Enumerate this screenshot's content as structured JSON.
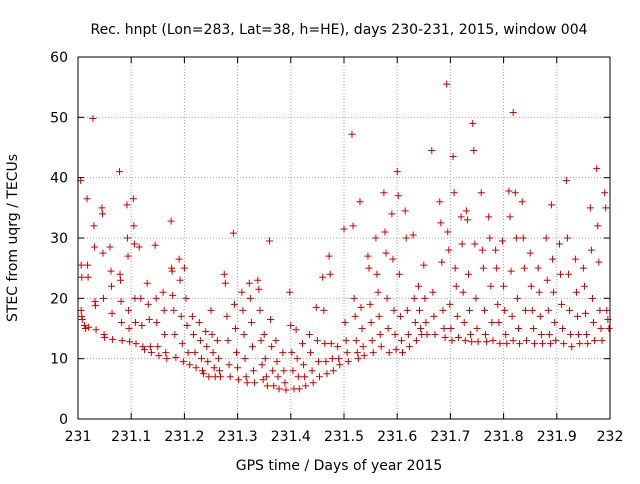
{
  "chart_data": {
    "type": "scatter",
    "title": "Rec. hnpt (Lon=283, Lat=38, h=HE), days 230-231, 2015, window 004",
    "xlabel": "GPS time / Days of year 2015",
    "ylabel": "STEC from uqrg / TECUs",
    "xlim": [
      231,
      232
    ],
    "ylim": [
      0,
      60
    ],
    "xticks": [
      231,
      231.1,
      231.2,
      231.3,
      231.4,
      231.5,
      231.6,
      231.7,
      231.8,
      231.9,
      232
    ],
    "xtick_labels": [
      "231",
      "231.1",
      "231.2",
      "231.3",
      "231.4",
      "231.5",
      "231.6",
      "231.7",
      "231.8",
      "231.9",
      "232"
    ],
    "yticks": [
      0,
      10,
      20,
      30,
      40,
      50,
      60
    ],
    "ytick_labels": [
      "0",
      "10",
      "20",
      "30",
      "40",
      "50",
      "60"
    ],
    "grid": true,
    "marker": "+",
    "color": "#cc0000",
    "points": [
      [
        231.005,
        39.5
      ],
      [
        231.006,
        25.5
      ],
      [
        231.007,
        23.5
      ],
      [
        231.006,
        18
      ],
      [
        231.007,
        17
      ],
      [
        231.008,
        16.5
      ],
      [
        231.012,
        15.5
      ],
      [
        231.014,
        15
      ],
      [
        231.017,
        36.5
      ],
      [
        231.018,
        25.5
      ],
      [
        231.019,
        23.5
      ],
      [
        231.02,
        15.2
      ],
      [
        231.028,
        49.8
      ],
      [
        231.03,
        32
      ],
      [
        231.031,
        28.5
      ],
      [
        231.032,
        19.5
      ],
      [
        231.033,
        18.8
      ],
      [
        231.034,
        14.8
      ],
      [
        231.045,
        35
      ],
      [
        231.046,
        34
      ],
      [
        231.047,
        27.5
      ],
      [
        231.048,
        20
      ],
      [
        231.049,
        14
      ],
      [
        231.05,
        13.5
      ],
      [
        231.06,
        28.5
      ],
      [
        231.062,
        24.5
      ],
      [
        231.063,
        22
      ],
      [
        231.064,
        17.5
      ],
      [
        231.065,
        13.2
      ],
      [
        231.078,
        41
      ],
      [
        231.079,
        24
      ],
      [
        231.08,
        23
      ],
      [
        231.081,
        19.5
      ],
      [
        231.082,
        16
      ],
      [
        231.083,
        13
      ],
      [
        231.092,
        35.5
      ],
      [
        231.093,
        30
      ],
      [
        231.094,
        27
      ],
      [
        231.095,
        18
      ],
      [
        231.096,
        15
      ],
      [
        231.097,
        12.8
      ],
      [
        231.104,
        36.5
      ],
      [
        231.105,
        32
      ],
      [
        231.106,
        29
      ],
      [
        231.107,
        20
      ],
      [
        231.108,
        16
      ],
      [
        231.109,
        12.5
      ],
      [
        231.115,
        28.5
      ],
      [
        231.118,
        20
      ],
      [
        231.12,
        15.5
      ],
      [
        231.122,
        12
      ],
      [
        231.125,
        11.5
      ],
      [
        231.13,
        22.5
      ],
      [
        231.132,
        19
      ],
      [
        231.134,
        16.5
      ],
      [
        231.136,
        12
      ],
      [
        231.138,
        11
      ],
      [
        231.145,
        28.8
      ],
      [
        231.147,
        20
      ],
      [
        231.148,
        16
      ],
      [
        231.15,
        12
      ],
      [
        231.152,
        10.5
      ],
      [
        231.16,
        21
      ],
      [
        231.162,
        18
      ],
      [
        231.163,
        14
      ],
      [
        231.165,
        11
      ],
      [
        231.167,
        10
      ],
      [
        231.175,
        32.8
      ],
      [
        231.176,
        25
      ],
      [
        231.177,
        24.5
      ],
      [
        231.178,
        20.5
      ],
      [
        231.18,
        18
      ],
      [
        231.182,
        14
      ],
      [
        231.184,
        10.2
      ],
      [
        231.19,
        26.5
      ],
      [
        231.192,
        23
      ],
      [
        231.194,
        17
      ],
      [
        231.196,
        12.5
      ],
      [
        231.198,
        9.5
      ],
      [
        231.2,
        25
      ],
      [
        231.203,
        20
      ],
      [
        231.205,
        15.5
      ],
      [
        231.207,
        11
      ],
      [
        231.21,
        9
      ],
      [
        231.215,
        17
      ],
      [
        231.217,
        14
      ],
      [
        231.22,
        11
      ],
      [
        231.222,
        8.5
      ],
      [
        231.228,
        16
      ],
      [
        231.23,
        13
      ],
      [
        231.232,
        10
      ],
      [
        231.234,
        8
      ],
      [
        231.236,
        7.5
      ],
      [
        231.24,
        14.5
      ],
      [
        231.242,
        12
      ],
      [
        231.244,
        9.5
      ],
      [
        231.246,
        7
      ],
      [
        231.25,
        18
      ],
      [
        231.252,
        14
      ],
      [
        231.254,
        11
      ],
      [
        231.256,
        8.5
      ],
      [
        231.258,
        7
      ],
      [
        231.262,
        13
      ],
      [
        231.264,
        10
      ],
      [
        231.266,
        8
      ],
      [
        231.268,
        7
      ],
      [
        231.275,
        24
      ],
      [
        231.277,
        22.5
      ],
      [
        231.28,
        17
      ],
      [
        231.282,
        13
      ],
      [
        231.284,
        9
      ],
      [
        231.286,
        7
      ],
      [
        231.292,
        30.8
      ],
      [
        231.294,
        19
      ],
      [
        231.296,
        15
      ],
      [
        231.298,
        11
      ],
      [
        231.3,
        8.5
      ],
      [
        231.302,
        6.5
      ],
      [
        231.308,
        21
      ],
      [
        231.31,
        18
      ],
      [
        231.312,
        14
      ],
      [
        231.314,
        10
      ],
      [
        231.316,
        7
      ],
      [
        231.318,
        6
      ],
      [
        231.322,
        22.5
      ],
      [
        231.324,
        20
      ],
      [
        231.326,
        16
      ],
      [
        231.328,
        12
      ],
      [
        231.33,
        8
      ],
      [
        231.332,
        6
      ],
      [
        231.338,
        23
      ],
      [
        231.34,
        21.5
      ],
      [
        231.342,
        18
      ],
      [
        231.344,
        13
      ],
      [
        231.346,
        9
      ],
      [
        231.348,
        6.5
      ],
      [
        231.35,
        14
      ],
      [
        231.352,
        10
      ],
      [
        231.354,
        7
      ],
      [
        231.356,
        5.5
      ],
      [
        231.36,
        29.5
      ],
      [
        231.362,
        16.5
      ],
      [
        231.364,
        12
      ],
      [
        231.366,
        8
      ],
      [
        231.368,
        5.5
      ],
      [
        231.372,
        13
      ],
      [
        231.374,
        9.5
      ],
      [
        231.376,
        7
      ],
      [
        231.378,
        5
      ],
      [
        231.385,
        11
      ],
      [
        231.387,
        8
      ],
      [
        231.389,
        6
      ],
      [
        231.391,
        4.8
      ],
      [
        231.398,
        21
      ],
      [
        231.4,
        15.5
      ],
      [
        231.402,
        11
      ],
      [
        231.404,
        8
      ],
      [
        231.406,
        5
      ],
      [
        231.41,
        14.8
      ],
      [
        231.412,
        10
      ],
      [
        231.414,
        7
      ],
      [
        231.416,
        5
      ],
      [
        231.422,
        12.5
      ],
      [
        231.424,
        9
      ],
      [
        231.426,
        7
      ],
      [
        231.428,
        5.5
      ],
      [
        231.435,
        14
      ],
      [
        231.437,
        11
      ],
      [
        231.44,
        8
      ],
      [
        231.442,
        6
      ],
      [
        231.448,
        18.5
      ],
      [
        231.45,
        13
      ],
      [
        231.452,
        9.5
      ],
      [
        231.454,
        7
      ],
      [
        231.46,
        23.5
      ],
      [
        231.462,
        18
      ],
      [
        231.464,
        12.5
      ],
      [
        231.466,
        9.5
      ],
      [
        231.468,
        7.5
      ],
      [
        231.472,
        27
      ],
      [
        231.474,
        24
      ],
      [
        231.476,
        12.5
      ],
      [
        231.478,
        10
      ],
      [
        231.48,
        8
      ],
      [
        231.488,
        12
      ],
      [
        231.49,
        10
      ],
      [
        231.492,
        9
      ],
      [
        231.5,
        31.5
      ],
      [
        231.502,
        16
      ],
      [
        231.504,
        13
      ],
      [
        231.506,
        11
      ],
      [
        231.508,
        9.5
      ],
      [
        231.515,
        47.2
      ],
      [
        231.517,
        32
      ],
      [
        231.519,
        20
      ],
      [
        231.521,
        17
      ],
      [
        231.523,
        13
      ],
      [
        231.525,
        11
      ],
      [
        231.527,
        10
      ],
      [
        231.53,
        36
      ],
      [
        231.532,
        18.5
      ],
      [
        231.534,
        15
      ],
      [
        231.536,
        12
      ],
      [
        231.538,
        10.5
      ],
      [
        231.545,
        27
      ],
      [
        231.547,
        25
      ],
      [
        231.549,
        19
      ],
      [
        231.551,
        16
      ],
      [
        231.553,
        13
      ],
      [
        231.555,
        11
      ],
      [
        231.56,
        30
      ],
      [
        231.562,
        24
      ],
      [
        231.564,
        21
      ],
      [
        231.566,
        17
      ],
      [
        231.568,
        14
      ],
      [
        231.57,
        12
      ],
      [
        231.575,
        37.5
      ],
      [
        231.577,
        31
      ],
      [
        231.579,
        27.5
      ],
      [
        231.581,
        20
      ],
      [
        231.583,
        15
      ],
      [
        231.585,
        11
      ],
      [
        231.59,
        34
      ],
      [
        231.592,
        26.5
      ],
      [
        231.594,
        18
      ],
      [
        231.596,
        14
      ],
      [
        231.598,
        11.5
      ],
      [
        231.6,
        41
      ],
      [
        231.602,
        37
      ],
      [
        231.604,
        24
      ],
      [
        231.606,
        17
      ],
      [
        231.608,
        13
      ],
      [
        231.61,
        11
      ],
      [
        231.615,
        34.5
      ],
      [
        231.617,
        30
      ],
      [
        231.619,
        18
      ],
      [
        231.621,
        14
      ],
      [
        231.623,
        12
      ],
      [
        231.63,
        30.5
      ],
      [
        231.632,
        20
      ],
      [
        231.634,
        16
      ],
      [
        231.636,
        13
      ],
      [
        231.64,
        22
      ],
      [
        231.642,
        18
      ],
      [
        231.644,
        15
      ],
      [
        231.646,
        14
      ],
      [
        231.65,
        25.5
      ],
      [
        231.652,
        20
      ],
      [
        231.654,
        16
      ],
      [
        231.656,
        14
      ],
      [
        231.665,
        44.5
      ],
      [
        231.667,
        21
      ],
      [
        231.669,
        17
      ],
      [
        231.671,
        14
      ],
      [
        231.68,
        36
      ],
      [
        231.682,
        32.5
      ],
      [
        231.684,
        26
      ],
      [
        231.686,
        18
      ],
      [
        231.688,
        15
      ],
      [
        231.69,
        13.5
      ],
      [
        231.693,
        55.5
      ],
      [
        231.695,
        31
      ],
      [
        231.697,
        28
      ],
      [
        231.699,
        19
      ],
      [
        231.701,
        15
      ],
      [
        231.703,
        13
      ],
      [
        231.705,
        43.5
      ],
      [
        231.707,
        37.5
      ],
      [
        231.709,
        25
      ],
      [
        231.711,
        22
      ],
      [
        231.713,
        17
      ],
      [
        231.715,
        13.5
      ],
      [
        231.72,
        33.5
      ],
      [
        231.722,
        29
      ],
      [
        231.724,
        21
      ],
      [
        231.726,
        16
      ],
      [
        231.728,
        13
      ],
      [
        231.73,
        34.5
      ],
      [
        231.732,
        33
      ],
      [
        231.734,
        24
      ],
      [
        231.736,
        18
      ],
      [
        231.738,
        14
      ],
      [
        231.74,
        12.8
      ],
      [
        231.742,
        49
      ],
      [
        231.744,
        44.5
      ],
      [
        231.746,
        29
      ],
      [
        231.748,
        20
      ],
      [
        231.75,
        15
      ],
      [
        231.752,
        12.8
      ],
      [
        231.758,
        37.5
      ],
      [
        231.76,
        28
      ],
      [
        231.762,
        25
      ],
      [
        231.764,
        18
      ],
      [
        231.766,
        14
      ],
      [
        231.768,
        12.8
      ],
      [
        231.772,
        33.5
      ],
      [
        231.774,
        30
      ],
      [
        231.776,
        22
      ],
      [
        231.778,
        16
      ],
      [
        231.78,
        13
      ],
      [
        231.785,
        28
      ],
      [
        231.787,
        25
      ],
      [
        231.789,
        19
      ],
      [
        231.791,
        16
      ],
      [
        231.793,
        12.5
      ],
      [
        231.798,
        29.5
      ],
      [
        231.8,
        22
      ],
      [
        231.802,
        18
      ],
      [
        231.804,
        14
      ],
      [
        231.806,
        12.5
      ],
      [
        231.81,
        37.8
      ],
      [
        231.812,
        33.5
      ],
      [
        231.814,
        24.5
      ],
      [
        231.816,
        17
      ],
      [
        231.818,
        13
      ],
      [
        231.818,
        50.8
      ],
      [
        231.822,
        37.5
      ],
      [
        231.824,
        30
      ],
      [
        231.826,
        20
      ],
      [
        231.828,
        15
      ],
      [
        231.83,
        12.5
      ],
      [
        231.835,
        36
      ],
      [
        231.837,
        30
      ],
      [
        231.839,
        25
      ],
      [
        231.841,
        18
      ],
      [
        231.843,
        13
      ],
      [
        231.85,
        27.5
      ],
      [
        231.852,
        22
      ],
      [
        231.854,
        18
      ],
      [
        231.856,
        15
      ],
      [
        231.858,
        12.5
      ],
      [
        231.865,
        25
      ],
      [
        231.867,
        21
      ],
      [
        231.869,
        17
      ],
      [
        231.871,
        14
      ],
      [
        231.873,
        12.5
      ],
      [
        231.88,
        30
      ],
      [
        231.882,
        23
      ],
      [
        231.884,
        18
      ],
      [
        231.886,
        14
      ],
      [
        231.888,
        12.5
      ],
      [
        231.89,
        35.5
      ],
      [
        231.892,
        26.5
      ],
      [
        231.894,
        21
      ],
      [
        231.896,
        16
      ],
      [
        231.898,
        13
      ],
      [
        231.905,
        29
      ],
      [
        231.907,
        24
      ],
      [
        231.909,
        19
      ],
      [
        231.911,
        15
      ],
      [
        231.913,
        12.5
      ],
      [
        231.918,
        39.5
      ],
      [
        231.92,
        30
      ],
      [
        231.922,
        24
      ],
      [
        231.924,
        18
      ],
      [
        231.926,
        14
      ],
      [
        231.928,
        12
      ],
      [
        231.935,
        26.5
      ],
      [
        231.937,
        21
      ],
      [
        231.939,
        17
      ],
      [
        231.941,
        14
      ],
      [
        231.943,
        12.5
      ],
      [
        231.95,
        25
      ],
      [
        231.952,
        22
      ],
      [
        231.954,
        17.5
      ],
      [
        231.956,
        14
      ],
      [
        231.958,
        12.5
      ],
      [
        231.963,
        35
      ],
      [
        231.965,
        28
      ],
      [
        231.967,
        20
      ],
      [
        231.969,
        16
      ],
      [
        231.971,
        13
      ],
      [
        231.975,
        41.5
      ],
      [
        231.977,
        32
      ],
      [
        231.979,
        26
      ],
      [
        231.981,
        18
      ],
      [
        231.983,
        15
      ],
      [
        231.985,
        13
      ],
      [
        231.99,
        37.5
      ],
      [
        231.992,
        35
      ],
      [
        231.994,
        18
      ],
      [
        231.996,
        16.5
      ],
      [
        231.998,
        15
      ]
    ]
  }
}
